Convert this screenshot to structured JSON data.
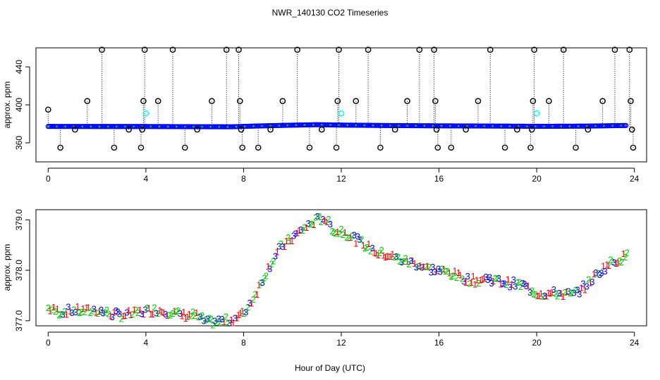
{
  "title": "NWR_140130  CO2 Timeseries",
  "xlabel": "Hour of Day (UTC)",
  "colors": {
    "raw_marker": "#000000",
    "flagged": "#00ffff",
    "averaged": "#0000ff",
    "series_1": "#ff0000",
    "series_2": "#00cc00",
    "series_3": "#0000ff",
    "drop_line": "#000000"
  },
  "chart_data": [
    {
      "type": "scatter",
      "panel": "top",
      "ylabel": "approx. ppm",
      "xlim": [
        -0.5,
        24.5
      ],
      "ylim": [
        340,
        460
      ],
      "xticks": [
        0,
        4,
        8,
        12,
        16,
        20,
        24
      ],
      "yticks": [
        360,
        400,
        440
      ],
      "spikes": [
        {
          "x": 0.0,
          "y": 395
        },
        {
          "x": 0.5,
          "y": 355
        },
        {
          "x": 1.1,
          "y": 374
        },
        {
          "x": 1.6,
          "y": 404
        },
        {
          "x": 2.2,
          "y": 458
        },
        {
          "x": 2.7,
          "y": 355
        },
        {
          "x": 3.3,
          "y": 374
        },
        {
          "x": 3.8,
          "y": 355
        },
        {
          "x": 3.85,
          "y": 374
        },
        {
          "x": 3.9,
          "y": 404
        },
        {
          "x": 3.95,
          "y": 458
        },
        {
          "x": 4.5,
          "y": 404
        },
        {
          "x": 5.1,
          "y": 458
        },
        {
          "x": 5.6,
          "y": 355
        },
        {
          "x": 6.1,
          "y": 374
        },
        {
          "x": 6.7,
          "y": 404
        },
        {
          "x": 7.3,
          "y": 458
        },
        {
          "x": 7.8,
          "y": 458
        },
        {
          "x": 7.85,
          "y": 404
        },
        {
          "x": 7.9,
          "y": 374
        },
        {
          "x": 7.95,
          "y": 355
        },
        {
          "x": 8.6,
          "y": 355
        },
        {
          "x": 9.1,
          "y": 374
        },
        {
          "x": 9.6,
          "y": 404
        },
        {
          "x": 10.2,
          "y": 458
        },
        {
          "x": 10.7,
          "y": 355
        },
        {
          "x": 11.2,
          "y": 374
        },
        {
          "x": 11.8,
          "y": 355
        },
        {
          "x": 11.85,
          "y": 404
        },
        {
          "x": 11.9,
          "y": 458
        },
        {
          "x": 12.6,
          "y": 404
        },
        {
          "x": 13.1,
          "y": 458
        },
        {
          "x": 13.6,
          "y": 355
        },
        {
          "x": 14.2,
          "y": 374
        },
        {
          "x": 14.7,
          "y": 404
        },
        {
          "x": 15.2,
          "y": 458
        },
        {
          "x": 15.8,
          "y": 458
        },
        {
          "x": 15.85,
          "y": 404
        },
        {
          "x": 15.9,
          "y": 374
        },
        {
          "x": 15.95,
          "y": 355
        },
        {
          "x": 16.5,
          "y": 355
        },
        {
          "x": 17.1,
          "y": 374
        },
        {
          "x": 17.6,
          "y": 404
        },
        {
          "x": 18.1,
          "y": 458
        },
        {
          "x": 18.7,
          "y": 355
        },
        {
          "x": 19.2,
          "y": 374
        },
        {
          "x": 19.75,
          "y": 355
        },
        {
          "x": 19.8,
          "y": 374
        },
        {
          "x": 19.85,
          "y": 404
        },
        {
          "x": 19.9,
          "y": 458
        },
        {
          "x": 20.5,
          "y": 404
        },
        {
          "x": 21.1,
          "y": 458
        },
        {
          "x": 21.6,
          "y": 355
        },
        {
          "x": 22.1,
          "y": 374
        },
        {
          "x": 22.7,
          "y": 404
        },
        {
          "x": 23.2,
          "y": 458
        },
        {
          "x": 23.8,
          "y": 458
        },
        {
          "x": 23.85,
          "y": 404
        },
        {
          "x": 23.9,
          "y": 374
        },
        {
          "x": 23.95,
          "y": 355
        }
      ],
      "flagged_points": [
        {
          "x": 4.0,
          "y": 391
        },
        {
          "x": 12.0,
          "y": 391
        },
        {
          "x": 20.0,
          "y": 391
        }
      ],
      "baseline": [
        {
          "x": 0,
          "y": 377.3
        },
        {
          "x": 2,
          "y": 377.2
        },
        {
          "x": 4,
          "y": 377.2
        },
        {
          "x": 6,
          "y": 377.0
        },
        {
          "x": 7.5,
          "y": 376.9
        },
        {
          "x": 8.5,
          "y": 377.7
        },
        {
          "x": 10,
          "y": 378.6
        },
        {
          "x": 11,
          "y": 379.1
        },
        {
          "x": 12,
          "y": 378.7
        },
        {
          "x": 14,
          "y": 378.2
        },
        {
          "x": 16,
          "y": 377.9
        },
        {
          "x": 18,
          "y": 377.7
        },
        {
          "x": 20,
          "y": 377.4
        },
        {
          "x": 22,
          "y": 377.6
        },
        {
          "x": 23.7,
          "y": 378.3
        }
      ]
    },
    {
      "type": "scatter",
      "panel": "bottom",
      "ylabel": "approx. ppm",
      "xlim": [
        -0.5,
        24.5
      ],
      "ylim": [
        376.9,
        379.2
      ],
      "xticks": [
        0,
        4,
        8,
        12,
        16,
        20,
        24
      ],
      "yticks": [
        377.0,
        378.0,
        379.0
      ],
      "ytick_labels": [
        "377.0",
        "378.0",
        "379.0"
      ],
      "marker_labels": [
        "1",
        "2",
        "3"
      ],
      "trend": [
        {
          "x": 0.0,
          "y": 377.25
        },
        {
          "x": 0.5,
          "y": 377.18
        },
        {
          "x": 1.0,
          "y": 377.22
        },
        {
          "x": 1.5,
          "y": 377.2
        },
        {
          "x": 2.0,
          "y": 377.22
        },
        {
          "x": 2.5,
          "y": 377.15
        },
        {
          "x": 3.0,
          "y": 377.12
        },
        {
          "x": 3.5,
          "y": 377.15
        },
        {
          "x": 4.0,
          "y": 377.2
        },
        {
          "x": 4.5,
          "y": 377.22
        },
        {
          "x": 5.0,
          "y": 377.18
        },
        {
          "x": 5.5,
          "y": 377.12
        },
        {
          "x": 6.0,
          "y": 377.12
        },
        {
          "x": 6.5,
          "y": 376.98
        },
        {
          "x": 7.0,
          "y": 377.0
        },
        {
          "x": 7.5,
          "y": 377.02
        },
        {
          "x": 8.0,
          "y": 377.15
        },
        {
          "x": 8.5,
          "y": 377.55
        },
        {
          "x": 9.0,
          "y": 378.05
        },
        {
          "x": 9.5,
          "y": 378.45
        },
        {
          "x": 10.0,
          "y": 378.65
        },
        {
          "x": 10.5,
          "y": 378.85
        },
        {
          "x": 11.0,
          "y": 379.0
        },
        {
          "x": 11.3,
          "y": 379.05
        },
        {
          "x": 11.8,
          "y": 378.75
        },
        {
          "x": 12.0,
          "y": 378.8
        },
        {
          "x": 12.5,
          "y": 378.65
        },
        {
          "x": 13.0,
          "y": 378.5
        },
        {
          "x": 13.5,
          "y": 378.35
        },
        {
          "x": 14.0,
          "y": 378.3
        },
        {
          "x": 14.5,
          "y": 378.2
        },
        {
          "x": 15.0,
          "y": 378.15
        },
        {
          "x": 15.5,
          "y": 378.05
        },
        {
          "x": 16.0,
          "y": 378.0
        },
        {
          "x": 16.5,
          "y": 377.95
        },
        {
          "x": 17.0,
          "y": 377.85
        },
        {
          "x": 17.5,
          "y": 377.8
        },
        {
          "x": 18.0,
          "y": 377.85
        },
        {
          "x": 18.5,
          "y": 377.78
        },
        {
          "x": 19.0,
          "y": 377.75
        },
        {
          "x": 19.5,
          "y": 377.7
        },
        {
          "x": 20.0,
          "y": 377.55
        },
        {
          "x": 20.5,
          "y": 377.55
        },
        {
          "x": 21.0,
          "y": 377.55
        },
        {
          "x": 21.5,
          "y": 377.52
        },
        {
          "x": 22.0,
          "y": 377.7
        },
        {
          "x": 22.5,
          "y": 377.95
        },
        {
          "x": 23.0,
          "y": 378.15
        },
        {
          "x": 23.5,
          "y": 378.25
        },
        {
          "x": 23.7,
          "y": 378.3
        }
      ]
    }
  ]
}
